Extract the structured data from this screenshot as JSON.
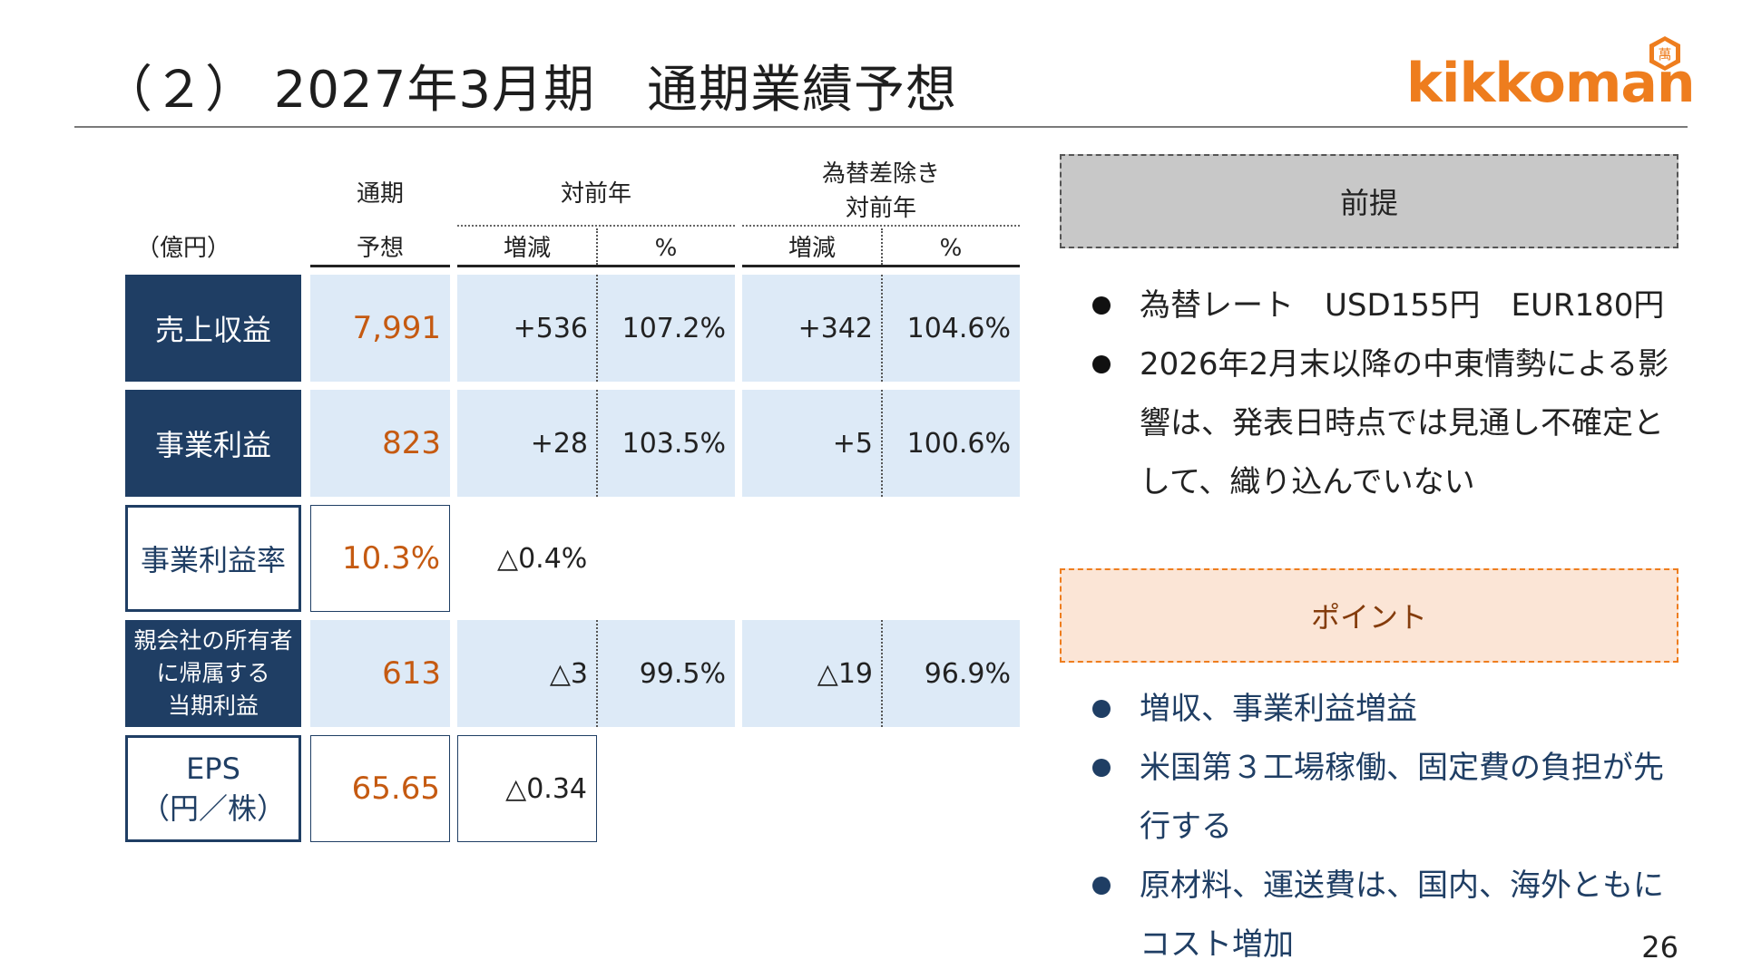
{
  "header": {
    "title": "（２） 2027年3月期　通期業績予想",
    "logo_text": "kikkoman",
    "logo_mark": "萬"
  },
  "table": {
    "unit_label": "（億円）",
    "col_forecast_line1": "通期",
    "col_forecast_line2": "予想",
    "col_yoy": "対前年",
    "col_fx_line1": "為替差除き",
    "col_fx_line2": "対前年",
    "sub_change": "増減",
    "sub_pct": "%",
    "rows": [
      {
        "label": "売上収益",
        "forecast": "7,991",
        "yoy_change": "+536",
        "yoy_pct": "107.2%",
        "fx_change": "+342",
        "fx_pct": "104.6%"
      },
      {
        "label": "事業利益",
        "forecast": "823",
        "yoy_change": "+28",
        "yoy_pct": "103.5%",
        "fx_change": "+5",
        "fx_pct": "100.6%"
      },
      {
        "label": "事業利益率",
        "forecast": "10.3%",
        "yoy_change": "△0.4%"
      },
      {
        "label_line1": "親会社の所有者",
        "label_line2": "に帰属する",
        "label_line3": "当期利益",
        "forecast": "613",
        "yoy_change": "△3",
        "yoy_pct": "99.5%",
        "fx_change": "△19",
        "fx_pct": "96.9%"
      },
      {
        "label_line1": "EPS",
        "label_line2": "（円／株）",
        "forecast": "65.65",
        "yoy_change": "△0.34"
      }
    ]
  },
  "premise": {
    "title": "前提",
    "items": [
      "為替レート　USD155円　EUR180円",
      "2026年2月末以降の中東情勢による影響は、発表日時点では見通し不確定として、織り込んでいない"
    ]
  },
  "points": {
    "title": "ポイント",
    "items": [
      "増収、事業利益増益",
      "米国第３工場稼働、固定費の負担が先行する",
      "原材料、運送費は、国内、海外ともにコスト増加"
    ]
  },
  "page_number": "26",
  "colors": {
    "navy": "#1f3e64",
    "light_blue": "#ddeaf7",
    "orange_value": "#c55a11",
    "brand_orange": "#ee7d1e",
    "premise_gray": "#c8c8c8",
    "point_peach": "#fbe5d6"
  }
}
